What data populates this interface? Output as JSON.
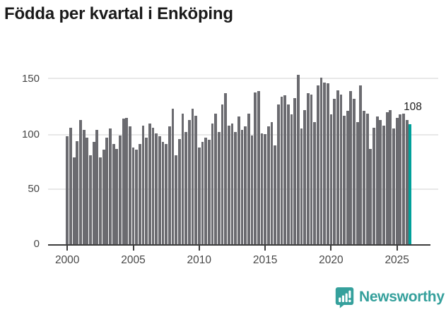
{
  "title": "Födda per kvartal i Enköping",
  "annotation": {
    "last_value_label": "108"
  },
  "colors": {
    "bar": "#6b6b70",
    "highlight_bar": "#00a09a",
    "gridline": "#e8e8e8",
    "axis_line": "#3d3d3d",
    "tick_label": "#474747",
    "title": "#1a1a1a",
    "logo_teal": "#35a09c"
  },
  "logo": {
    "text": "Newsworthy",
    "icon": "newsworthy-speech-bubble-chart-icon"
  },
  "chart_data": {
    "type": "bar",
    "title": "Födda per kvartal i Enköping",
    "x_unit": "quarter",
    "start_quarter": "2000-Q1",
    "end_quarter": "2026-Q1",
    "grid": "horizontal",
    "ylim": [
      0,
      155
    ],
    "y_ticks": [
      "150",
      "100",
      "50",
      "0"
    ],
    "x_ticks": [
      "2000",
      "2005",
      "2010",
      "2015",
      "2020",
      "2025"
    ],
    "highlight_last_bar": true,
    "last_bar_data_label": "108",
    "values_by_year": {
      "2000": [
        97,
        105,
        78,
        93
      ],
      "2001": [
        112,
        103,
        96,
        80
      ],
      "2002": [
        92,
        103,
        78,
        85
      ],
      "2003": [
        96,
        104,
        90,
        86
      ],
      "2004": [
        98,
        113,
        114,
        106
      ],
      "2005": [
        87,
        85,
        90,
        107
      ],
      "2006": [
        96,
        109,
        105,
        100
      ],
      "2007": [
        97,
        92,
        90,
        106
      ],
      "2008": [
        122,
        80,
        95,
        118
      ],
      "2009": [
        101,
        112,
        122,
        116
      ],
      "2010": [
        87,
        92,
        96,
        94
      ],
      "2011": [
        109,
        118,
        101,
        126
      ],
      "2012": [
        136,
        107,
        109,
        101
      ],
      "2013": [
        115,
        103,
        106,
        118
      ],
      "2014": [
        98,
        137,
        138,
        100
      ],
      "2015": [
        99,
        106,
        110,
        89
      ],
      "2016": [
        126,
        133,
        134,
        126
      ],
      "2017": [
        117,
        132,
        153,
        104
      ],
      "2018": [
        121,
        136,
        135,
        110
      ],
      "2019": [
        143,
        150,
        146,
        145
      ],
      "2020": [
        117,
        131,
        139,
        135
      ],
      "2021": [
        116,
        120,
        138,
        131
      ],
      "2022": [
        110,
        143,
        120,
        118
      ],
      "2023": [
        86,
        105,
        115,
        112
      ],
      "2024": [
        107,
        119,
        121,
        104
      ],
      "2025": [
        114,
        117,
        118,
        112
      ],
      "2026": [
        108
      ]
    }
  }
}
